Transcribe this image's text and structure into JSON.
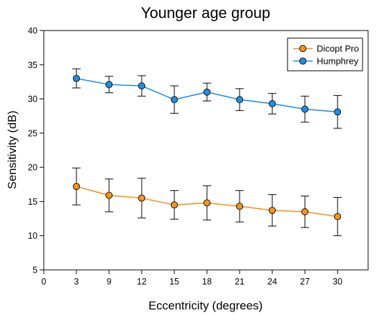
{
  "chart_data": {
    "type": "line",
    "title": "Younger age group",
    "xlabel": "Eccentricity (degrees)",
    "ylabel": "Sensitivity (dB)",
    "x_ticks": [
      "0",
      "3",
      "9",
      "12",
      "15",
      "18",
      "21",
      "24",
      "27",
      "30"
    ],
    "categories": [
      "3",
      "9",
      "12",
      "15",
      "18",
      "21",
      "24",
      "27",
      "30"
    ],
    "ylim": [
      5,
      40
    ],
    "y_ticks": [
      5,
      10,
      15,
      20,
      25,
      30,
      35,
      40
    ],
    "grid": false,
    "legend_position": "top-right",
    "error_bars": true,
    "series": [
      {
        "name": "Dicopt Pro",
        "color": "#f7941d",
        "values": [
          17.2,
          15.9,
          15.5,
          14.5,
          14.8,
          14.3,
          13.7,
          13.5,
          12.8
        ],
        "errors": [
          2.7,
          2.4,
          2.9,
          2.1,
          2.5,
          2.3,
          2.3,
          2.3,
          2.8
        ]
      },
      {
        "name": "Humphrey",
        "color": "#1f8fe8",
        "values": [
          33.0,
          32.1,
          31.9,
          29.9,
          31.0,
          29.9,
          29.3,
          28.5,
          28.1
        ],
        "errors": [
          1.4,
          1.2,
          1.5,
          2.0,
          1.3,
          1.6,
          1.5,
          1.9,
          2.4
        ]
      }
    ]
  }
}
